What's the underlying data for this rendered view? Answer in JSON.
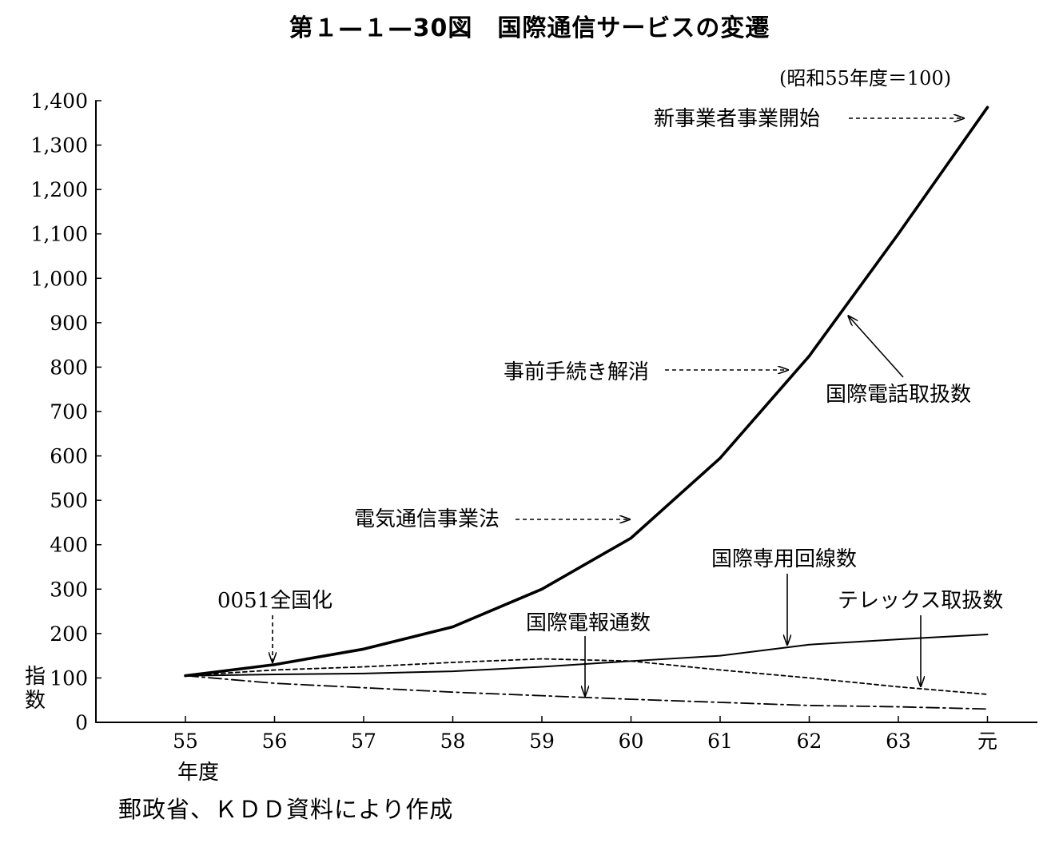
{
  "figure": {
    "title": "第１—１—30図　国際通信サービスの変遷",
    "base_note": "(昭和55年度＝100)",
    "source": "郵政省、ＫＤＤ資料により作成"
  },
  "chart_data": {
    "type": "line",
    "title": "国際通信サービスの変遷",
    "xlabel": "年度",
    "ylabel": "指数",
    "categories": [
      "55",
      "56",
      "57",
      "58",
      "59",
      "60",
      "61",
      "62",
      "63",
      "元"
    ],
    "ylim": [
      0,
      1400
    ],
    "yticks": [
      0,
      100,
      200,
      300,
      400,
      500,
      600,
      700,
      800,
      900,
      1000,
      1100,
      1200,
      1300,
      1400
    ],
    "ytick_labels": [
      "0",
      "100",
      "200",
      "300",
      "400",
      "500",
      "600",
      "700",
      "800",
      "900",
      "1,000",
      "1,100",
      "1,200",
      "1,300",
      "1,400"
    ],
    "grid": false,
    "series": [
      {
        "name": "国際電話取扱数",
        "style": "solid-thick",
        "values": [
          105,
          130,
          165,
          215,
          300,
          415,
          595,
          825,
          1100,
          1385
        ]
      },
      {
        "name": "国際専用回線数",
        "style": "solid",
        "values": [
          105,
          108,
          110,
          115,
          125,
          138,
          150,
          175,
          187,
          198
        ]
      },
      {
        "name": "テレックス取扱数",
        "style": "dotted",
        "values": [
          105,
          118,
          125,
          135,
          143,
          138,
          118,
          100,
          80,
          63
        ]
      },
      {
        "name": "国際電報通数",
        "style": "dash-dot",
        "values": [
          105,
          88,
          78,
          68,
          60,
          52,
          45,
          38,
          35,
          30
        ]
      }
    ],
    "annotations": [
      {
        "text": "新事業者事業開始",
        "x": "元",
        "y": 1385
      },
      {
        "text": "事前手続き解消",
        "x": "62",
        "y": 800
      },
      {
        "text": "電気通信事業法",
        "x": "60",
        "y": 460
      },
      {
        "text": "0051全国化",
        "x": "56",
        "y": 130
      }
    ]
  }
}
